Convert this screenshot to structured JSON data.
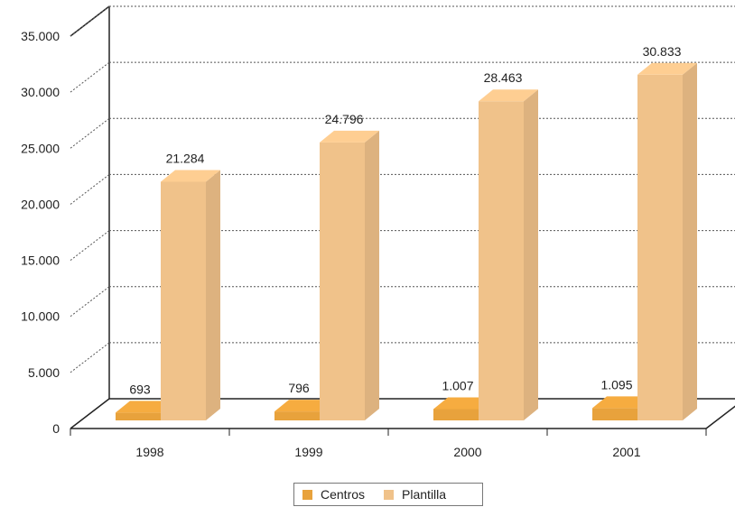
{
  "chart_data": {
    "type": "bar",
    "categories": [
      "1998",
      "1999",
      "2000",
      "2001"
    ],
    "series": [
      {
        "name": "Centros",
        "values": [
          693,
          796,
          1007,
          1095
        ],
        "labels": [
          "693",
          "796",
          "1.007",
          "1.095"
        ],
        "color": "#e8a23c"
      },
      {
        "name": "Plantilla",
        "values": [
          21284,
          24796,
          28463,
          30833
        ],
        "labels": [
          "21.284",
          "24.796",
          "28.463",
          "30.833"
        ],
        "color": "#f0c28a"
      }
    ],
    "yticks": [
      "0",
      "5.000",
      "10.000",
      "15.000",
      "20.000",
      "25.000",
      "30.000",
      "35.000"
    ],
    "ylim": [
      0,
      35000
    ],
    "grid": true,
    "legend_position": "bottom-center",
    "style": "3d"
  }
}
